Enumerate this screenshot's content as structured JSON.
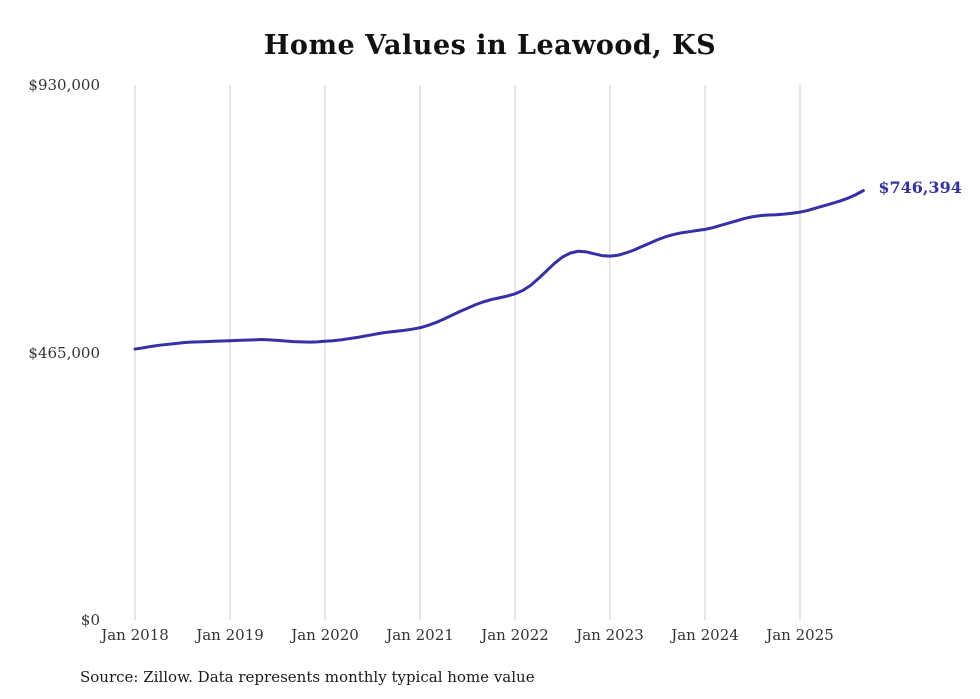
{
  "chart_data": {
    "type": "line",
    "title": "Home Values in Leawood, KS",
    "series_name": "Monthly typical home value",
    "x": [
      "2018-01",
      "2018-02",
      "2018-03",
      "2018-04",
      "2018-05",
      "2018-06",
      "2018-07",
      "2018-08",
      "2018-09",
      "2018-10",
      "2018-11",
      "2018-12",
      "2019-01",
      "2019-02",
      "2019-03",
      "2019-04",
      "2019-05",
      "2019-06",
      "2019-07",
      "2019-08",
      "2019-09",
      "2019-10",
      "2019-11",
      "2019-12",
      "2020-01",
      "2020-02",
      "2020-03",
      "2020-04",
      "2020-05",
      "2020-06",
      "2020-07",
      "2020-08",
      "2020-09",
      "2020-10",
      "2020-11",
      "2020-12",
      "2021-01",
      "2021-02",
      "2021-03",
      "2021-04",
      "2021-05",
      "2021-06",
      "2021-07",
      "2021-08",
      "2021-09",
      "2021-10",
      "2021-11",
      "2021-12",
      "2022-01",
      "2022-02",
      "2022-03",
      "2022-04",
      "2022-05",
      "2022-06",
      "2022-07",
      "2022-08",
      "2022-09",
      "2022-10",
      "2022-11",
      "2022-12",
      "2023-01",
      "2023-02",
      "2023-03",
      "2023-04",
      "2023-05",
      "2023-06",
      "2023-07",
      "2023-08",
      "2023-09",
      "2023-10",
      "2023-11",
      "2023-12",
      "2024-01",
      "2024-02",
      "2024-03",
      "2024-04",
      "2024-05",
      "2024-06",
      "2024-07",
      "2024-08",
      "2024-09",
      "2024-10",
      "2024-11",
      "2024-12",
      "2025-01",
      "2025-02",
      "2025-03",
      "2025-04",
      "2025-05",
      "2025-06",
      "2025-07",
      "2025-08",
      "2025-09"
    ],
    "values": [
      471000,
      473000,
      475500,
      477500,
      479000,
      480500,
      482000,
      483000,
      483500,
      484000,
      484500,
      485000,
      485500,
      486000,
      486500,
      487000,
      487500,
      487000,
      486000,
      485000,
      484000,
      483500,
      483000,
      483500,
      484500,
      485500,
      487000,
      489000,
      491000,
      493500,
      496000,
      498500,
      500500,
      502000,
      503500,
      505500,
      508000,
      512000,
      517000,
      523000,
      529500,
      536000,
      542000,
      548000,
      553000,
      557000,
      560000,
      563000,
      567000,
      573000,
      582000,
      594000,
      607000,
      620000,
      631000,
      638000,
      641000,
      640000,
      636500,
      633500,
      632500,
      634000,
      638000,
      643000,
      649000,
      655000,
      661000,
      666000,
      670000,
      673000,
      675000,
      677000,
      679000,
      682000,
      686000,
      690000,
      694000,
      698000,
      701000,
      703000,
      704000,
      704500,
      705500,
      707000,
      709000,
      712000,
      716000,
      720000,
      724000,
      728000,
      733000,
      739000,
      746394
    ],
    "x_tick_labels": [
      "Jan 2018",
      "Jan 2019",
      "Jan 2020",
      "Jan 2021",
      "Jan 2022",
      "Jan 2023",
      "Jan 2024",
      "Jan 2025"
    ],
    "y_ticks": [
      {
        "label": "$0",
        "value": 0
      },
      {
        "label": "$465,000",
        "value": 465000
      },
      {
        "label": "$930,000",
        "value": 930000
      }
    ],
    "ylim": [
      0,
      930000
    ],
    "end_label": "$746,394",
    "latest_value": 746394,
    "line_color": "#3431a6",
    "grid_color": "#cccccc",
    "legend": "off",
    "grid": "vertical-only"
  },
  "source_note": "Source: Zillow. Data represents monthly typical home value"
}
